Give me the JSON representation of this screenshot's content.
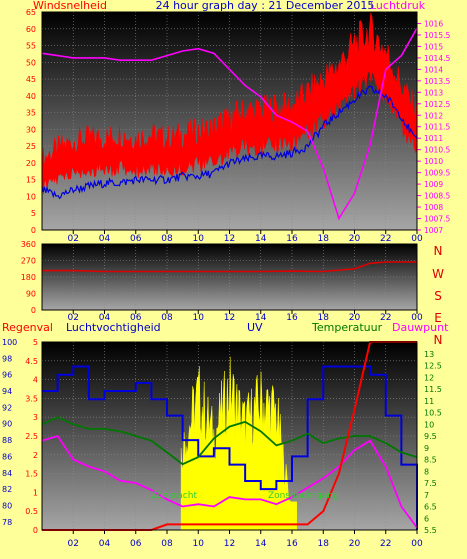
{
  "title": "24 hour graph day : 21 December 2015",
  "colors": {
    "background": "#ffff99",
    "wind": "#ff0000",
    "gust": "#0000dd",
    "pressure": "#ff00ff",
    "direction": "#dd0000",
    "humidity": "#0000dd",
    "temperature": "#007700",
    "dewpoint": "#ff00ff",
    "rain": "#ff0000",
    "uv": "#ffff00",
    "solar": "#ffff00"
  },
  "x_ticks": [
    "02",
    "04",
    "06",
    "08",
    "10",
    "12",
    "14",
    "16",
    "18",
    "20",
    "22",
    "00"
  ],
  "chart_data": [
    {
      "type": "line",
      "name": "wind-pressure",
      "left_label": "Windsnelheid",
      "right_label": "Luchtdruk",
      "ylim_left": [
        0,
        65
      ],
      "ylim_right": [
        1007,
        1016.5
      ],
      "yticks_left": [
        "0",
        "5",
        "10",
        "15",
        "20",
        "25",
        "30",
        "35",
        "40",
        "45",
        "50",
        "55",
        "60",
        "65"
      ],
      "yticks_right": [
        "1007",
        "1007.5",
        "1008",
        "1008.5",
        "1009",
        "1009.5",
        "1010",
        "1010.5",
        "1011",
        "1011.5",
        "1012",
        "1012.5",
        "1013",
        "1013.5",
        "1014",
        "1014.5",
        "1015",
        "1015.5",
        "1016"
      ],
      "x_hours": [
        0,
        1,
        2,
        3,
        4,
        5,
        6,
        7,
        8,
        9,
        10,
        11,
        12,
        13,
        14,
        15,
        16,
        17,
        18,
        19,
        20,
        21,
        22,
        23,
        24
      ],
      "series": [
        {
          "values_left": [
            19,
            22,
            24,
            25,
            25,
            26,
            25,
            26,
            25,
            26,
            27,
            28,
            31,
            33,
            33,
            34,
            34,
            38,
            42,
            46,
            52,
            56,
            50,
            40,
            32
          ]
        },
        {
          "values_left": [
            12,
            10,
            12,
            13,
            14,
            14,
            15,
            15,
            15,
            16,
            16,
            17,
            20,
            21,
            22,
            22,
            23,
            25,
            31,
            35,
            39,
            42,
            40,
            34,
            26
          ]
        },
        {
          "values_right": [
            1014.7,
            1014.6,
            1014.5,
            1014.5,
            1014.5,
            1014.4,
            1014.4,
            1014.4,
            1014.6,
            1014.8,
            1014.9,
            1014.7,
            1014.0,
            1013.3,
            1012.8,
            1012.0,
            1011.7,
            1011.3,
            1009.7,
            1007.5,
            1008.6,
            1010.7,
            1014.0,
            1014.6,
            1015.8
          ]
        }
      ]
    },
    {
      "type": "line",
      "name": "wind-direction",
      "ylim": [
        0,
        360
      ],
      "yticks": [
        "0",
        "90",
        "180",
        "270",
        "360"
      ],
      "right_labels": [
        "N",
        "W",
        "S",
        "E",
        "N"
      ],
      "x_hours": [
        0,
        2,
        4,
        6,
        8,
        10,
        12,
        14,
        16,
        18,
        20,
        21,
        22,
        24
      ],
      "series": [
        {
          "values": [
            215,
            215,
            210,
            210,
            210,
            210,
            210,
            210,
            212,
            210,
            225,
            255,
            262,
            262
          ]
        }
      ]
    },
    {
      "type": "line",
      "name": "rain-humidity-temperature",
      "labels": [
        "Regenval",
        "Luchtvochtigheid",
        "UV",
        "Temperatuur",
        "Dauwpunt"
      ],
      "overlay_labels": [
        "Zonkracht",
        "Zonsondergang"
      ],
      "ylim_humidity": [
        77,
        100
      ],
      "yticks_humidity": [
        "78",
        "80",
        "82",
        "84",
        "86",
        "88",
        "90",
        "92",
        "94",
        "96",
        "98",
        "100"
      ],
      "ylim_rain": [
        0,
        5
      ],
      "yticks_rain": [
        "0",
        "0.5",
        "1",
        "1.5",
        "2",
        "2.5",
        "3",
        "3.5",
        "4",
        "4.5",
        "5"
      ],
      "ylim_temperature": [
        5.5,
        13.5
      ],
      "yticks_temperature": [
        "5.5",
        "6",
        "6.5",
        "7",
        "7.5",
        "8",
        "8.5",
        "9",
        "9.5",
        "10",
        "10.5",
        "11",
        "11.5",
        "12",
        "12.5",
        "13"
      ],
      "x_hours": [
        0,
        1,
        2,
        3,
        4,
        5,
        6,
        7,
        8,
        9,
        10,
        11,
        12,
        13,
        14,
        15,
        16,
        17,
        18,
        19,
        20,
        21,
        22,
        23,
        24
      ],
      "series": [
        {
          "values_humidity": [
            94,
            96,
            97,
            93,
            94,
            94,
            95,
            93,
            91,
            88,
            86,
            87,
            85,
            83,
            82,
            83,
            86,
            93,
            97,
            97,
            97,
            96,
            91,
            85,
            77
          ]
        },
        {
          "values_temperature": [
            10,
            10.3,
            10,
            9.8,
            9.8,
            9.7,
            9.5,
            9.3,
            8.8,
            8.3,
            8.6,
            9.4,
            9.9,
            10.1,
            9.7,
            9.1,
            9.3,
            9.6,
            9.2,
            9.4,
            9.5,
            9.5,
            9.2,
            8.8,
            8.6
          ]
        },
        {
          "values_temperature": [
            9.3,
            9.5,
            8.5,
            8.2,
            8.0,
            7.6,
            7.5,
            7.2,
            6.8,
            6.5,
            6.6,
            6.5,
            6.9,
            6.8,
            6.8,
            6.6,
            6.9,
            7.3,
            7.7,
            8.2,
            8.9,
            9.3,
            8.2,
            6.5,
            5.6
          ]
        },
        {
          "values_rain": [
            0,
            0,
            0,
            0,
            0,
            0,
            0,
            0,
            0.15,
            0.15,
            0.15,
            0.15,
            0.15,
            0.15,
            0.15,
            0.15,
            0.15,
            0.15,
            0.5,
            1.5,
            3.2,
            5,
            5,
            5,
            5
          ]
        },
        {
          "values_rain": [
            0,
            0,
            0,
            0,
            0,
            0,
            0,
            0,
            0,
            2.8,
            4.6,
            3.2,
            4.8,
            3.6,
            4.4,
            4.0,
            0.5,
            0,
            0,
            0,
            0,
            0,
            0,
            0,
            0
          ]
        }
      ]
    }
  ]
}
